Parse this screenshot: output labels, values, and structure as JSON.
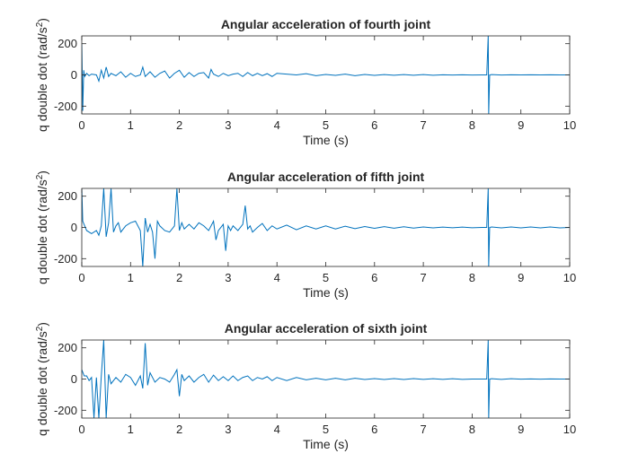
{
  "chart_data": [
    {
      "type": "line",
      "title": "Angular acceleration of fourth joint",
      "xlabel": "Time (s)",
      "ylabel": "q double dot (rad/s²)",
      "ylabel_base": "q double dot (rad/s",
      "ylabel_sup": "2",
      "ylabel_close": ")",
      "xlim": [
        0,
        10
      ],
      "ylim": [
        -250,
        250
      ],
      "xticks": [
        "0",
        "1",
        "2",
        "3",
        "4",
        "5",
        "6",
        "7",
        "8",
        "9",
        "10"
      ],
      "yticks": [
        "-200",
        "0",
        "200"
      ],
      "grid": false,
      "line_color": "#0072BD",
      "series": [
        {
          "x": [
            0,
            0.02,
            0.04,
            0.06,
            0.1,
            0.15,
            0.2,
            0.3,
            0.35,
            0.4,
            0.45,
            0.5,
            0.55,
            0.6,
            0.7,
            0.8,
            0.9,
            1.0,
            1.1,
            1.2,
            1.25,
            1.3,
            1.4,
            1.5,
            1.6,
            1.7,
            1.8,
            1.9,
            2.0,
            2.1,
            2.2,
            2.3,
            2.4,
            2.5,
            2.6,
            2.65,
            2.7,
            2.8,
            2.9,
            3.0,
            3.1,
            3.2,
            3.3,
            3.4,
            3.5,
            3.6,
            3.7,
            3.8,
            3.9,
            4.0,
            4.2,
            4.4,
            4.6,
            4.8,
            5.0,
            5.2,
            5.4,
            5.6,
            5.8,
            6.0,
            6.2,
            6.4,
            6.6,
            6.8,
            7.0,
            7.2,
            7.4,
            7.6,
            7.8,
            8.0,
            8.2,
            8.3,
            8.33,
            8.34,
            8.36,
            8.4,
            8.6,
            8.8,
            9.0,
            9.2,
            9.4,
            9.6,
            9.8,
            10.0
          ],
          "y": [
            200,
            -230,
            30,
            -10,
            10,
            -5,
            5,
            0,
            -40,
            30,
            -20,
            50,
            -10,
            10,
            -5,
            20,
            -15,
            10,
            -10,
            0,
            50,
            -10,
            20,
            -15,
            10,
            25,
            -20,
            10,
            30,
            -15,
            15,
            -10,
            10,
            15,
            -20,
            35,
            5,
            -10,
            10,
            -5,
            5,
            10,
            -10,
            15,
            -5,
            10,
            -5,
            8,
            -10,
            10,
            5,
            0,
            8,
            -5,
            3,
            -3,
            5,
            -5,
            3,
            -3,
            2,
            -2,
            2,
            -2,
            2,
            -2,
            1,
            -1,
            1,
            -1,
            0,
            0,
            250,
            -250,
            0,
            2,
            -1,
            1,
            0,
            1,
            0,
            1,
            0,
            0
          ]
        }
      ]
    },
    {
      "type": "line",
      "title": "Angular acceleration of fifth joint",
      "xlabel": "Time (s)",
      "ylabel": "q double dot (rad/s²)",
      "ylabel_base": "q double dot (rad/s",
      "ylabel_sup": "2",
      "ylabel_close": ")",
      "xlim": [
        0,
        10
      ],
      "ylim": [
        -250,
        250
      ],
      "xticks": [
        "0",
        "1",
        "2",
        "3",
        "4",
        "5",
        "6",
        "7",
        "8",
        "9",
        "10"
      ],
      "yticks": [
        "-200",
        "0",
        "200"
      ],
      "grid": false,
      "line_color": "#0072BD",
      "series": [
        {
          "x": [
            0,
            0.02,
            0.1,
            0.2,
            0.3,
            0.35,
            0.4,
            0.45,
            0.5,
            0.55,
            0.6,
            0.65,
            0.7,
            0.75,
            0.8,
            0.9,
            1.0,
            1.1,
            1.2,
            1.25,
            1.3,
            1.35,
            1.4,
            1.45,
            1.5,
            1.55,
            1.6,
            1.7,
            1.8,
            1.9,
            1.95,
            2.0,
            2.05,
            2.1,
            2.2,
            2.3,
            2.4,
            2.5,
            2.6,
            2.7,
            2.75,
            2.8,
            2.9,
            2.95,
            3.0,
            3.05,
            3.1,
            3.2,
            3.3,
            3.35,
            3.4,
            3.45,
            3.5,
            3.6,
            3.7,
            3.8,
            3.9,
            4.0,
            4.2,
            4.4,
            4.6,
            4.8,
            5.0,
            5.2,
            5.4,
            5.6,
            5.8,
            6.0,
            6.2,
            6.4,
            6.6,
            6.8,
            7.0,
            7.2,
            7.4,
            7.6,
            7.8,
            8.0,
            8.2,
            8.3,
            8.33,
            8.34,
            8.36,
            8.4,
            8.6,
            8.8,
            9.0,
            9.2,
            9.4,
            9.6,
            9.8,
            10.0
          ],
          "y": [
            250,
            40,
            -20,
            -40,
            -20,
            -50,
            10,
            250,
            -60,
            30,
            250,
            -30,
            10,
            30,
            -30,
            10,
            30,
            40,
            -20,
            -250,
            60,
            -30,
            20,
            -30,
            -200,
            40,
            10,
            -20,
            -30,
            10,
            250,
            -20,
            30,
            -10,
            20,
            -10,
            30,
            10,
            -20,
            40,
            -80,
            -20,
            20,
            -150,
            10,
            -20,
            10,
            -20,
            20,
            140,
            -10,
            10,
            -30,
            0,
            25,
            -20,
            10,
            -10,
            15,
            -15,
            10,
            -10,
            10,
            -10,
            8,
            -8,
            6,
            -6,
            5,
            -5,
            4,
            -4,
            3,
            -3,
            2,
            -2,
            2,
            -2,
            0,
            0,
            250,
            -250,
            0,
            3,
            -3,
            3,
            -3,
            3,
            -3,
            3,
            -3,
            0
          ]
        }
      ]
    },
    {
      "type": "line",
      "title": "Angular acceleration of sixth joint",
      "xlabel": "Time (s)",
      "ylabel": "q double dot (rad/s²)",
      "ylabel_base": "q double dot (rad/s",
      "ylabel_sup": "2",
      "ylabel_close": ")",
      "xlim": [
        0,
        10
      ],
      "ylim": [
        -250,
        250
      ],
      "xticks": [
        "0",
        "1",
        "2",
        "3",
        "4",
        "5",
        "6",
        "7",
        "8",
        "9",
        "10"
      ],
      "yticks": [
        "-200",
        "0",
        "200"
      ],
      "grid": false,
      "line_color": "#0072BD",
      "series": [
        {
          "x": [
            0,
            0.05,
            0.1,
            0.15,
            0.2,
            0.25,
            0.3,
            0.35,
            0.4,
            0.45,
            0.5,
            0.55,
            0.6,
            0.7,
            0.8,
            0.9,
            1.0,
            1.1,
            1.2,
            1.25,
            1.3,
            1.35,
            1.4,
            1.5,
            1.6,
            1.7,
            1.8,
            1.9,
            1.95,
            2.0,
            2.05,
            2.1,
            2.2,
            2.3,
            2.4,
            2.5,
            2.6,
            2.7,
            2.8,
            2.9,
            3.0,
            3.1,
            3.2,
            3.3,
            3.4,
            3.5,
            3.6,
            3.7,
            3.8,
            3.9,
            4.0,
            4.2,
            4.4,
            4.6,
            4.8,
            5.0,
            5.2,
            5.4,
            5.6,
            5.8,
            6.0,
            6.2,
            6.4,
            6.6,
            6.8,
            7.0,
            7.2,
            7.4,
            7.6,
            7.8,
            8.0,
            8.2,
            8.3,
            8.33,
            8.34,
            8.36,
            8.4,
            8.6,
            8.8,
            9.0,
            9.2,
            9.4,
            9.6,
            9.8,
            10.0
          ],
          "y": [
            60,
            20,
            20,
            -10,
            10,
            -250,
            10,
            -250,
            20,
            250,
            -250,
            30,
            -30,
            10,
            -20,
            30,
            10,
            -40,
            20,
            -60,
            230,
            -40,
            40,
            -20,
            10,
            0,
            -20,
            30,
            60,
            -110,
            30,
            -10,
            20,
            -20,
            10,
            30,
            -20,
            25,
            -10,
            15,
            -10,
            20,
            -10,
            10,
            20,
            -10,
            10,
            0,
            15,
            -10,
            10,
            -10,
            10,
            -5,
            5,
            -5,
            5,
            -5,
            5,
            -3,
            3,
            -3,
            3,
            -3,
            3,
            -2,
            2,
            -2,
            2,
            -2,
            0,
            0,
            0,
            250,
            -250,
            0,
            2,
            -2,
            2,
            -1,
            1,
            -1,
            1,
            0,
            0
          ]
        }
      ]
    }
  ]
}
